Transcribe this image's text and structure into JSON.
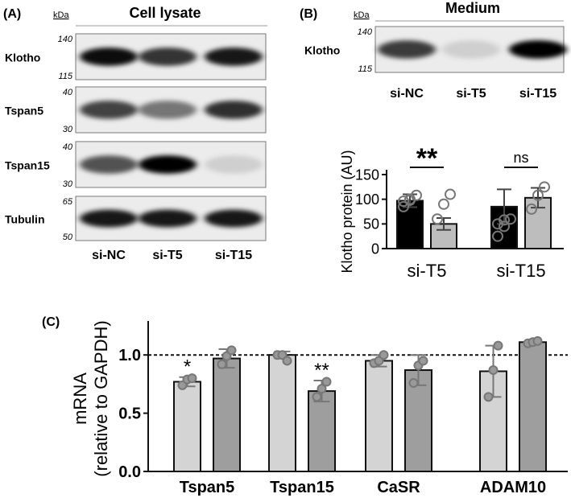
{
  "panel_a": {
    "label": "(A)",
    "kda": "kDa",
    "title": "Cell lysate",
    "blots": [
      {
        "name": "Klotho",
        "mw_top": "140",
        "mw_bottom": "115",
        "bands": [
          0.95,
          0.78,
          0.9
        ]
      },
      {
        "name": "Tspan5",
        "mw_top": "40",
        "mw_bottom": "30",
        "bands": [
          0.72,
          0.5,
          0.8
        ]
      },
      {
        "name": "Tspan15",
        "mw_top": "40",
        "mw_bottom": "30",
        "bands": [
          0.65,
          1.0,
          0.12
        ]
      },
      {
        "name": "Tubulin",
        "mw_top": "65",
        "mw_bottom": "50",
        "bands": [
          0.9,
          0.9,
          0.9
        ]
      }
    ],
    "lanes": [
      "si-NC",
      "si-T5",
      "si-T15"
    ]
  },
  "panel_b": {
    "label": "(B)",
    "kda": "kDa",
    "title": "Medium",
    "blot": {
      "name": "Klotho",
      "mw_top": "140",
      "mw_bottom": "115",
      "bands": [
        0.75,
        0.12,
        1.0
      ]
    },
    "lanes": [
      "si-NC",
      "si-T5",
      "si-T15"
    ]
  },
  "chart_data": [
    {
      "type": "bar",
      "ylabel": "Klotho protein (AU)",
      "ylim": [
        0,
        150
      ],
      "yticks": [
        "0",
        "50",
        "100",
        "150"
      ],
      "groups": [
        "si-T5",
        "si-T15"
      ],
      "series": [
        {
          "values": [
            97,
            85
          ],
          "errors": [
            13,
            35
          ],
          "color": "#000000"
        },
        {
          "values": [
            50,
            103
          ],
          "errors": [
            12,
            20
          ],
          "color": "#bdbdbd"
        }
      ],
      "points": [
        [
          [
            85,
            98,
            108,
            96,
            100
          ],
          [
            25,
            45,
            60,
            50,
            58
          ]
        ],
        [
          [
            60,
            90,
            110
          ],
          [
            80,
            108,
            125
          ]
        ]
      ],
      "significance": [
        "**",
        "ns"
      ]
    },
    {
      "type": "bar",
      "panel_label": "(C)",
      "ylabel": "mRNA",
      "ylabel2": "(relative to GAPDH)",
      "ylim": [
        0,
        1.25
      ],
      "yticks": [
        "0.0",
        "0.5",
        "1.0"
      ],
      "reference_line": 1.0,
      "groups": [
        "Tspan5",
        "Tspan15",
        "CaSR",
        "ADAM10"
      ],
      "series": [
        {
          "values": [
            0.77,
            1.0,
            0.95,
            0.86
          ],
          "errors": [
            0.04,
            0.03,
            0.05,
            0.22
          ],
          "color": "#d4d4d4"
        },
        {
          "values": [
            0.97,
            0.69,
            0.87,
            1.11
          ],
          "errors": [
            0.08,
            0.09,
            0.13,
            0.01
          ],
          "color": "#9e9e9e"
        }
      ],
      "points": [
        [
          [
            0.74,
            0.79,
            0.8
          ],
          [
            1.0,
            1.0,
            0.95
          ],
          [
            0.93,
            0.95,
            1.0
          ],
          [
            0.64,
            0.87,
            1.08
          ]
        ],
        [
          [
            0.92,
            0.99,
            1.04
          ],
          [
            0.64,
            0.71,
            0.77
          ],
          [
            0.76,
            0.91,
            0.95
          ],
          [
            1.1,
            1.11,
            1.12
          ]
        ]
      ],
      "significance": [
        [
          "*",
          ""
        ],
        [
          "",
          "**"
        ],
        [
          "",
          ""
        ],
        [
          "",
          ""
        ]
      ]
    }
  ]
}
